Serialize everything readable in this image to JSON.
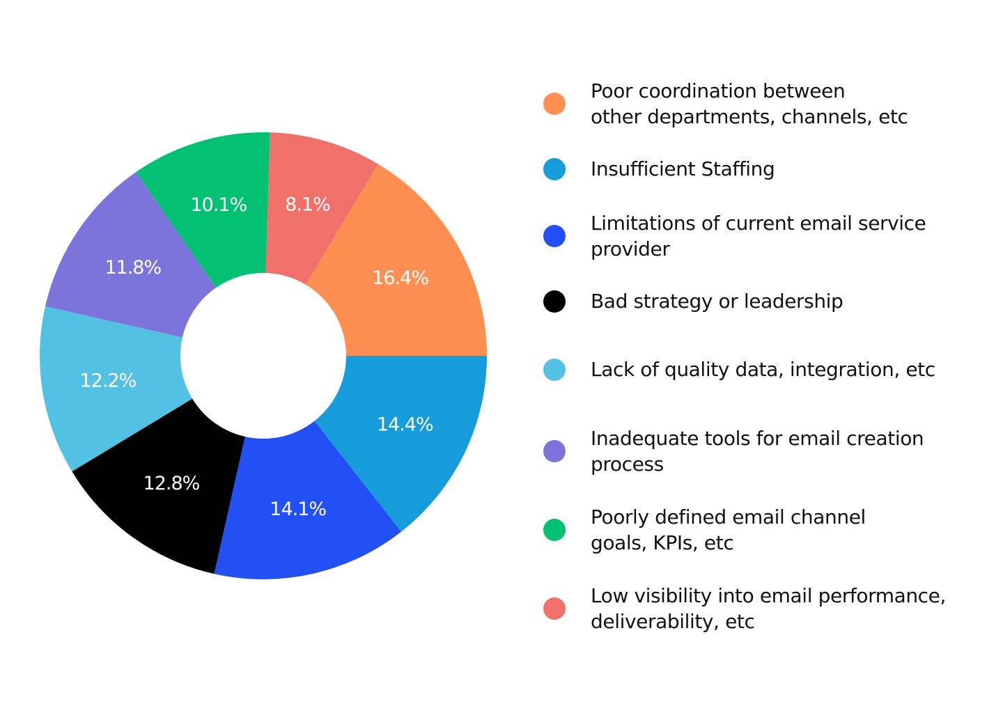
{
  "chart_data": {
    "type": "pie",
    "style": "donut",
    "title": "",
    "legend_position": "right",
    "categories": [
      "Poor coordination between other departments, channels, etc",
      "Insufficient Staffing",
      "Limitations of current email service provider",
      "Bad strategy or leadership",
      "Lack of quality data, integration, etc",
      "Inadequate tools for email creation process",
      "Poorly defined email channel goals, KPIs, etc",
      "Low visibility into email performance, deliverability, etc"
    ],
    "values": [
      16.4,
      14.4,
      14.1,
      12.8,
      12.2,
      11.8,
      10.1,
      8.1
    ],
    "labels": [
      "16.4%",
      "14.4%",
      "14.1%",
      "12.8%",
      "12.2%",
      "11.8%",
      "10.1%",
      "8.1%"
    ],
    "colors": [
      "#FF8F50",
      "#179CDB",
      "#2350F5",
      "#000000",
      "#53C1E3",
      "#7B74DB",
      "#02C173",
      "#F0716A"
    ]
  },
  "legend": {
    "items": [
      {
        "lines": [
          "Poor coordination between",
          "other departments, channels, etc"
        ],
        "color": "#FF8F50"
      },
      {
        "lines": [
          "Insufficient Staffing"
        ],
        "color": "#179CDB"
      },
      {
        "lines": [
          "Limitations of current email service",
          "provider"
        ],
        "color": "#2350F5"
      },
      {
        "lines": [
          "Bad strategy or leadership"
        ],
        "color": "#000000"
      },
      {
        "lines": [
          "Lack of quality data, integration, etc"
        ],
        "color": "#53C1E3"
      },
      {
        "lines": [
          "Inadequate tools for email creation",
          "process"
        ],
        "color": "#7B74DB"
      },
      {
        "lines": [
          "Poorly defined email channel",
          "goals, KPIs, etc"
        ],
        "color": "#02C173"
      },
      {
        "lines": [
          "Low visibility into email performance,",
          "deliverability, etc"
        ],
        "color": "#F0716A"
      }
    ]
  }
}
